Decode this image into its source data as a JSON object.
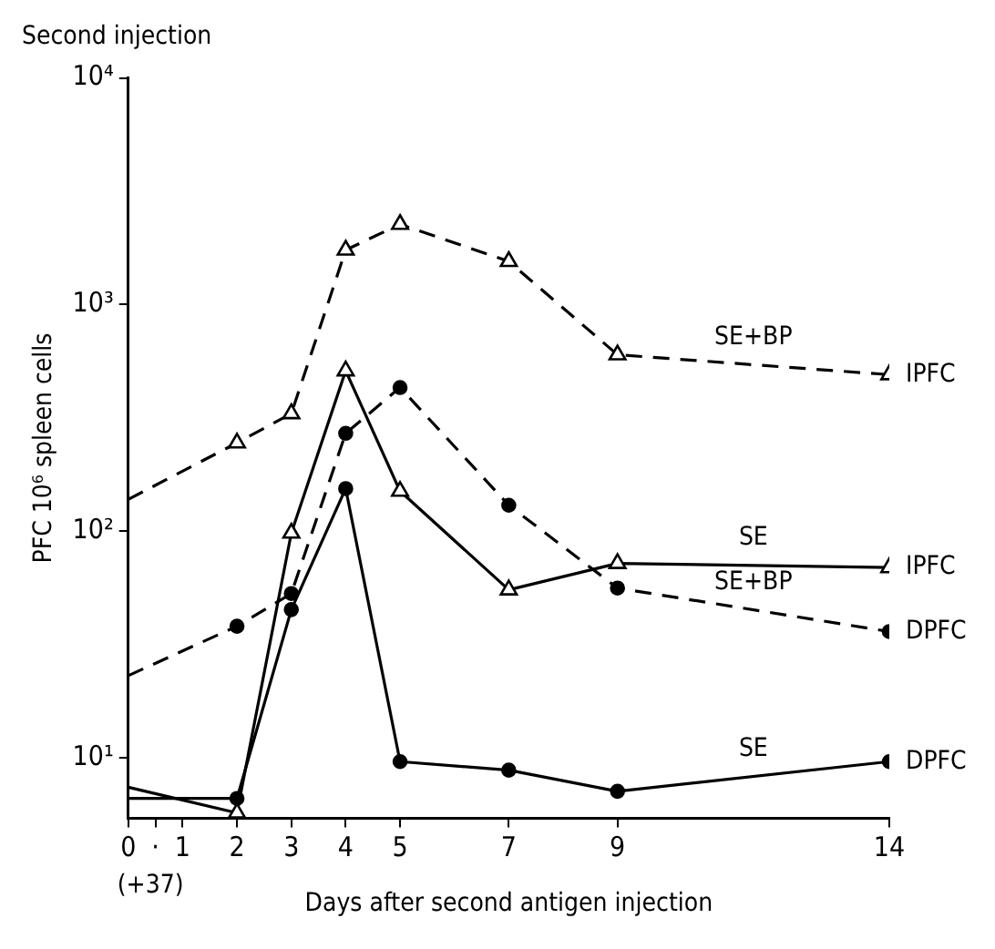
{
  "chart_data": {
    "type": "line",
    "title": "Second injection",
    "xlabel": "Days after second antigen injection",
    "ylabel": "PFC 10⁶ spleen cells",
    "log": "y",
    "grid": false,
    "legend": false,
    "xlim": [
      0,
      14
    ],
    "xticks": [
      0,
      {
        "value": 0.5,
        "label": "·"
      },
      1,
      2,
      3,
      4,
      5,
      7,
      9,
      14
    ],
    "ylim": [
      5.4,
      10000
    ],
    "yticks": [
      {
        "value": 10,
        "label": "10¹"
      },
      {
        "value": 100,
        "label": "10²"
      },
      {
        "value": 1000,
        "label": "10³"
      },
      {
        "value": 10000,
        "label": "10⁴"
      }
    ],
    "series": [
      {
        "color": "#000000",
        "marker": "triangle",
        "line_style": "dashed",
        "x": [
          0,
          2,
          3,
          4,
          5,
          7,
          9,
          14
        ],
        "values": [
          138,
          245,
          330,
          1740,
          2260,
          1550,
          600,
          490
        ]
      },
      {
        "color": "#000000",
        "marker": "triangle",
        "line_style": "solid",
        "x": [
          0,
          2,
          3,
          4,
          5,
          7,
          9,
          14
        ],
        "values": [
          7.4,
          5.7,
          98,
          510,
          150,
          55,
          72,
          69
        ]
      },
      {
        "color": "#000000",
        "marker": "circle",
        "line_style": "dashed",
        "x": [
          0,
          2,
          3,
          4,
          5,
          7,
          9,
          14
        ],
        "values": [
          23,
          38,
          53,
          270,
          430,
          130,
          56,
          36
        ]
      },
      {
        "color": "#000000",
        "marker": "circle",
        "line_style": "solid",
        "x": [
          0,
          2,
          3,
          4,
          5,
          7,
          9,
          14
        ],
        "values": [
          6.6,
          6.6,
          45,
          154,
          9.6,
          8.8,
          7.1,
          9.6
        ]
      }
    ],
    "annotations": [
      "SE+BP",
      "IPFC",
      "SE",
      "IPFC",
      "SE+BP",
      "DPFC",
      "SE",
      "DPFC",
      "(+37)"
    ]
  }
}
